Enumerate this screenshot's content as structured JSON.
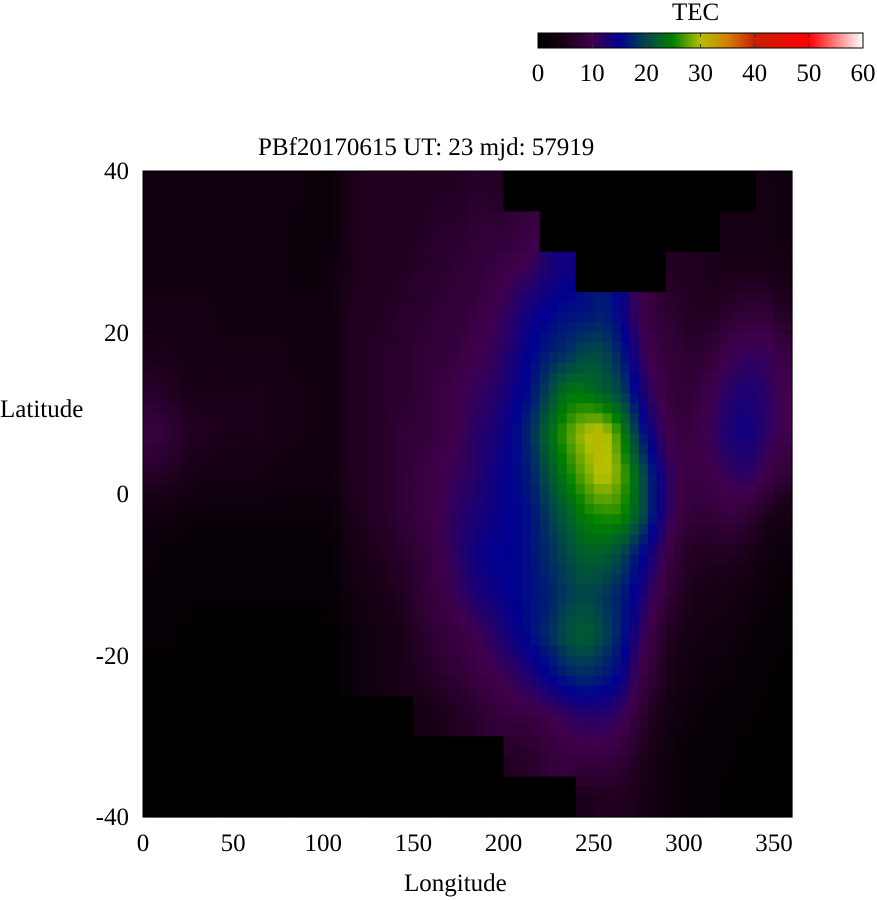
{
  "chart_data": {
    "type": "heatmap",
    "title": "PBf20170615  UT: 23  mjd: 57919",
    "xlabel": "Longitude",
    "ylabel": "Latitude",
    "xlim": [
      0,
      360
    ],
    "ylim": [
      -40,
      40
    ],
    "xticks": [
      "0",
      "50",
      "100",
      "150",
      "200",
      "250",
      "300",
      "350"
    ],
    "xtick_values": [
      0,
      50,
      100,
      150,
      200,
      250,
      300,
      350
    ],
    "yticks": [
      "40",
      "20",
      "0",
      "-20",
      "-40"
    ],
    "ytick_values": [
      40,
      20,
      0,
      -20,
      -40
    ],
    "colorbar": {
      "label": "TEC",
      "range": [
        0,
        60
      ],
      "ticks": [
        "0",
        "10",
        "20",
        "30",
        "40",
        "50",
        "60"
      ],
      "tick_values": [
        0,
        10,
        20,
        30,
        40,
        50,
        60
      ],
      "placement": "top-right",
      "colormap": [
        [
          0,
          "#000000"
        ],
        [
          5,
          "#1a0018"
        ],
        [
          10,
          "#40004c"
        ],
        [
          15,
          "#000090"
        ],
        [
          20,
          "#004848"
        ],
        [
          25,
          "#008000"
        ],
        [
          30,
          "#b4c000"
        ],
        [
          35,
          "#d08000"
        ],
        [
          40,
          "#c82000"
        ],
        [
          50,
          "#ff0000"
        ],
        [
          60,
          "#ffffff"
        ]
      ],
      "missing_color": "#000000"
    },
    "lon_centers": [
      5,
      15,
      25,
      35,
      45,
      55,
      65,
      75,
      85,
      95,
      105,
      115,
      125,
      135,
      145,
      155,
      165,
      175,
      185,
      195,
      205,
      215,
      225,
      235,
      245,
      255,
      265,
      275,
      285,
      295,
      305,
      315,
      325,
      335,
      345,
      355
    ],
    "lat_centers": [
      37.5,
      32.5,
      27.5,
      22.5,
      17.5,
      12.5,
      7.5,
      2.5,
      -2.5,
      -7.5,
      -12.5,
      -17.5,
      -22.5,
      -27.5,
      -32.5,
      -37.5
    ],
    "values": [
      [
        3,
        3,
        3,
        3,
        3,
        3,
        3,
        3,
        3,
        2,
        2,
        5,
        6,
        6,
        6,
        6,
        6,
        6,
        7,
        6,
        null,
        null,
        null,
        null,
        null,
        null,
        null,
        null,
        null,
        null,
        null,
        null,
        null,
        null,
        4,
        3
      ],
      [
        3,
        3,
        3,
        3,
        3,
        3,
        3,
        3,
        2,
        2,
        2,
        5,
        6,
        6,
        6,
        6,
        7,
        7,
        8,
        8,
        8,
        9,
        null,
        null,
        null,
        null,
        null,
        null,
        null,
        null,
        null,
        null,
        4,
        4,
        4,
        3
      ],
      [
        3,
        3,
        3,
        3,
        3,
        3,
        3,
        3,
        2,
        2,
        3,
        5,
        6,
        6,
        6,
        7,
        7,
        8,
        8,
        9,
        10,
        11,
        13,
        14,
        null,
        null,
        null,
        null,
        null,
        6,
        6,
        5,
        5,
        5,
        5,
        4
      ],
      [
        4,
        4,
        4,
        4,
        3,
        3,
        3,
        3,
        3,
        3,
        3,
        6,
        6,
        6,
        7,
        7,
        8,
        8,
        9,
        10,
        12,
        14,
        15,
        16,
        16,
        17,
        15,
        10,
        8,
        7,
        6,
        6,
        7,
        8,
        8,
        6
      ],
      [
        5,
        5,
        4,
        4,
        4,
        4,
        4,
        4,
        3,
        3,
        3,
        6,
        6,
        7,
        7,
        8,
        8,
        9,
        10,
        11,
        13,
        15,
        17,
        18,
        20,
        20,
        17,
        12,
        9,
        8,
        7,
        8,
        10,
        11,
        11,
        9
      ],
      [
        7,
        6,
        5,
        5,
        5,
        5,
        5,
        4,
        4,
        3,
        3,
        6,
        6,
        7,
        7,
        8,
        9,
        10,
        11,
        12,
        14,
        16,
        20,
        24,
        24,
        22,
        20,
        14,
        10,
        8,
        8,
        10,
        12,
        13,
        12,
        10
      ],
      [
        9,
        8,
        6,
        6,
        5,
        5,
        5,
        4,
        4,
        3,
        3,
        6,
        6,
        7,
        8,
        8,
        9,
        10,
        12,
        13,
        15,
        18,
        23,
        27,
        30,
        31,
        26,
        18,
        12,
        9,
        9,
        11,
        13,
        14,
        12,
        10
      ],
      [
        7,
        6,
        5,
        4,
        4,
        4,
        4,
        3,
        3,
        3,
        3,
        6,
        6,
        7,
        8,
        9,
        10,
        11,
        12,
        14,
        15,
        17,
        21,
        25,
        28,
        31,
        28,
        22,
        15,
        10,
        9,
        10,
        11,
        12,
        10,
        8
      ],
      [
        3,
        3,
        2,
        2,
        2,
        2,
        2,
        2,
        2,
        2,
        2,
        5,
        6,
        7,
        8,
        9,
        10,
        12,
        13,
        14,
        15,
        16,
        19,
        22,
        25,
        26,
        26,
        22,
        15,
        10,
        8,
        8,
        9,
        8,
        6,
        4
      ],
      [
        2,
        1,
        1,
        1,
        1,
        1,
        1,
        1,
        1,
        1,
        1,
        4,
        5,
        6,
        7,
        8,
        10,
        12,
        14,
        15,
        15,
        16,
        18,
        20,
        22,
        22,
        20,
        16,
        12,
        8,
        6,
        6,
        6,
        5,
        3,
        2
      ],
      [
        1,
        1,
        1,
        1,
        1,
        1,
        1,
        1,
        1,
        1,
        1,
        3,
        4,
        5,
        6,
        8,
        9,
        11,
        13,
        14,
        15,
        16,
        17,
        19,
        20,
        19,
        17,
        14,
        10,
        7,
        5,
        4,
        4,
        3,
        2,
        1
      ],
      [
        1,
        1,
        0,
        0,
        0,
        0,
        0,
        0,
        0,
        0,
        0,
        2,
        3,
        4,
        5,
        7,
        8,
        9,
        10,
        12,
        14,
        16,
        18,
        21,
        22,
        20,
        17,
        12,
        8,
        5,
        4,
        3,
        3,
        2,
        1,
        1
      ],
      [
        0,
        0,
        0,
        0,
        0,
        0,
        0,
        0,
        0,
        0,
        0,
        2,
        3,
        4,
        5,
        6,
        7,
        8,
        9,
        10,
        11,
        13,
        15,
        17,
        18,
        17,
        15,
        10,
        7,
        4,
        3,
        2,
        2,
        1,
        1,
        0
      ],
      [
        null,
        null,
        null,
        null,
        null,
        null,
        null,
        null,
        null,
        null,
        null,
        null,
        null,
        null,
        null,
        4,
        5,
        6,
        7,
        8,
        9,
        9,
        10,
        11,
        12,
        12,
        11,
        8,
        5,
        3,
        2,
        1,
        1,
        1,
        0,
        0
      ],
      [
        null,
        null,
        null,
        null,
        null,
        null,
        null,
        null,
        null,
        null,
        null,
        null,
        null,
        null,
        null,
        null,
        null,
        null,
        null,
        null,
        6,
        7,
        8,
        9,
        9,
        9,
        8,
        6,
        4,
        2,
        1,
        1,
        1,
        0,
        0,
        0
      ],
      [
        null,
        null,
        null,
        null,
        null,
        null,
        null,
        null,
        null,
        null,
        null,
        null,
        null,
        null,
        null,
        null,
        null,
        null,
        null,
        null,
        null,
        null,
        null,
        null,
        5,
        6,
        6,
        5,
        3,
        2,
        1,
        1,
        0,
        0,
        0,
        0
      ]
    ],
    "grid": false
  }
}
